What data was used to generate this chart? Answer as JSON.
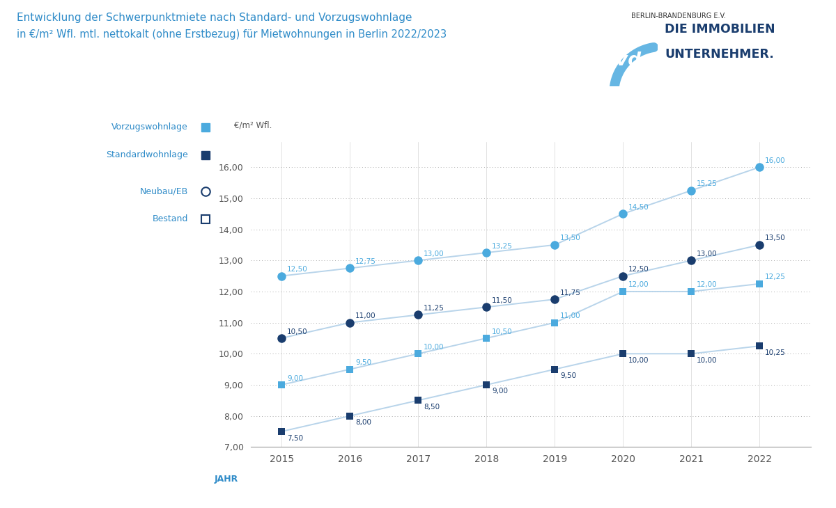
{
  "title_line1": "Entwicklung der Schwerpunktmiete nach Standard- und Vorzugswohnlage",
  "title_line2": "in €/m² Wfl. mtl. nettokalt (ohne Erstbezug) für Mietwohnungen in Berlin 2022/2023",
  "title_color": "#2e8bc8",
  "years": [
    2015,
    2016,
    2017,
    2018,
    2019,
    2020,
    2021,
    2022
  ],
  "vorzug_neubau": [
    12.5,
    12.75,
    13.0,
    13.25,
    13.5,
    14.5,
    15.25,
    16.0
  ],
  "vorzug_bestand": [
    10.5,
    11.0,
    11.25,
    11.5,
    11.75,
    12.5,
    13.0,
    13.5
  ],
  "standard_neubau": [
    9.0,
    9.5,
    10.0,
    10.5,
    11.0,
    12.0,
    12.0,
    12.25
  ],
  "standard_bestand": [
    7.5,
    8.0,
    8.5,
    9.0,
    9.5,
    10.0,
    10.0,
    10.25
  ],
  "col_vorzug_circ": "#4baade",
  "col_standard_circ": "#1a3d6e",
  "col_vorzug_sq": "#4baade",
  "col_standard_sq": "#1a3d6e",
  "col_line": "#b8d4ea",
  "col_text_label_vn": "#4baade",
  "col_text_label_vb": "#1a3d6e",
  "col_text_label_sn": "#4baade",
  "col_text_label_sb": "#1a3d6e",
  "col_axis_text": "#555555",
  "col_grid": "#aaaaaa",
  "col_legend_text": "#2e8bc8",
  "col_title": "#2e8bc8",
  "col_xlabel": "#2e8bc8",
  "col_ivd_blue": "#1a3d6e",
  "col_ivd_light": "#4baade",
  "ylim_min": 7.0,
  "ylim_max": 16.8,
  "yticks": [
    7.0,
    8.0,
    9.0,
    10.0,
    11.0,
    12.0,
    13.0,
    14.0,
    15.0,
    16.0
  ],
  "ylabel": "€/m² Wfl.",
  "xlabel": "JAHR",
  "legend_vorzug": "Vorzugswohnlage",
  "legend_standard": "Standardwohnlage",
  "legend_neubau": "Neubau/EB",
  "legend_bestand": "Bestand"
}
